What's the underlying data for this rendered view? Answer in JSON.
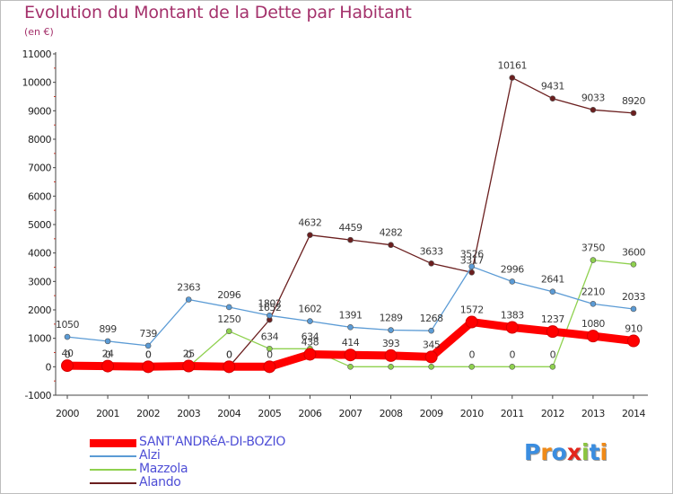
{
  "title": "Evolution du Montant de la Dette par Habitant",
  "subtitle": "(en €)",
  "logo": {
    "text": "Proxiti",
    "letter_colors": [
      "#3a8de0",
      "#f08a17",
      "#3a8de0",
      "#e3251b",
      "#8bc53f",
      "#3a8de0",
      "#f08a17"
    ]
  },
  "chart_data": {
    "type": "line",
    "title": "Evolution du Montant de la Dette par Habitant",
    "ylabel": "(en €)",
    "xlabel": "",
    "x": [
      2000,
      2001,
      2002,
      2003,
      2004,
      2005,
      2006,
      2007,
      2008,
      2009,
      2010,
      2011,
      2012,
      2013,
      2014
    ],
    "ylim": [
      -1000,
      11000
    ],
    "yticks": [
      -1000,
      0,
      1000,
      2000,
      3000,
      4000,
      5000,
      6000,
      7000,
      8000,
      9000,
      10000,
      11000
    ],
    "grid": false,
    "legend_position": "bottom-left",
    "series": [
      {
        "name": "SANT'ANDRéA-DI-BOZIO",
        "color": "#ff0000",
        "values": [
          40,
          24,
          0,
          25,
          0,
          0,
          438,
          414,
          393,
          345,
          1572,
          1383,
          1237,
          1080,
          910
        ],
        "labels": [
          "40",
          "24",
          "0",
          "25",
          "0",
          "0",
          "438",
          "414",
          "393",
          "345",
          "1572",
          "1383",
          "1237",
          "1080",
          "910"
        ]
      },
      {
        "name": "Alzi",
        "color": "#5b9bd5",
        "values": [
          1050,
          899,
          739,
          2363,
          2096,
          1802,
          1602,
          1391,
          1289,
          1268,
          3526,
          2996,
          2641,
          2210,
          2033
        ],
        "labels": [
          "1050",
          "899",
          "739",
          "2363",
          "2096",
          "1802",
          "1602",
          "1391",
          "1289",
          "1268",
          "3526",
          "2996",
          "2641",
          "2210",
          "2033"
        ]
      },
      {
        "name": "Mazzola",
        "color": "#8fd14f",
        "values": [
          0,
          0,
          0,
          0,
          1250,
          634,
          634,
          0,
          0,
          0,
          0,
          0,
          0,
          3750,
          3600
        ],
        "labels": [
          "0",
          "0",
          "0",
          "0",
          "1250",
          "634",
          "634",
          "",
          "",
          "",
          "0",
          "0",
          "0",
          "3750",
          "3600"
        ]
      },
      {
        "name": "Alando",
        "color": "#6b1f1f",
        "values": [
          null,
          null,
          null,
          null,
          0,
          1652,
          4632,
          4459,
          4282,
          3633,
          3317,
          10161,
          9431,
          9033,
          8920
        ],
        "labels": [
          "",
          "",
          "",
          "",
          "0",
          "1652",
          "4632",
          "4459",
          "4282",
          "3633",
          "3317",
          "10161",
          "9431",
          "9033",
          "8920"
        ]
      }
    ]
  }
}
